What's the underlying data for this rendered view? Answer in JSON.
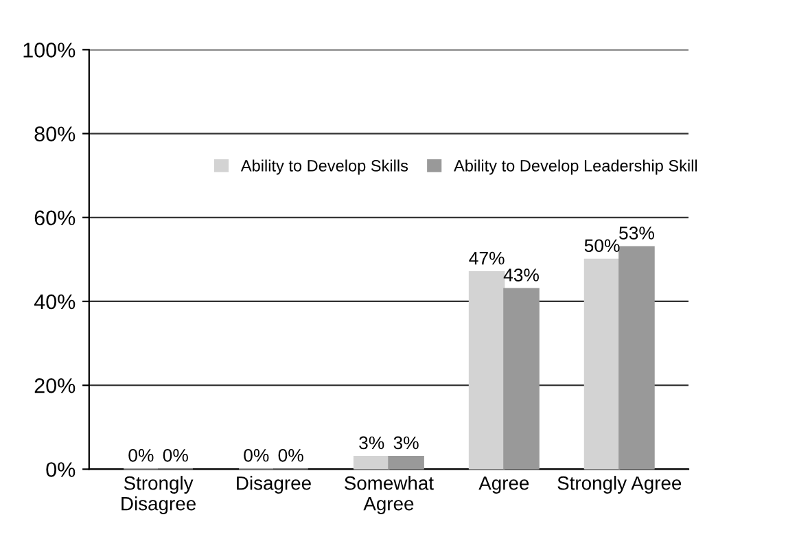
{
  "chart_data": {
    "type": "bar",
    "categories": [
      "Strongly\nDisagree",
      "Disagree",
      "Somewhat\nAgree",
      "Agree",
      "Strongly Agree"
    ],
    "series": [
      {
        "name": "Ability to Develop Skills",
        "color": "#d3d3d3",
        "values": [
          0,
          0,
          3,
          47,
          50
        ],
        "value_labels": [
          "0%",
          "0%",
          "3%",
          "47%",
          "50%"
        ]
      },
      {
        "name": "Ability to Develop Leadership Skill",
        "color": "#999999",
        "values": [
          0,
          0,
          3,
          43,
          53
        ],
        "value_labels": [
          "0%",
          "0%",
          "3%",
          "43%",
          "53%"
        ]
      }
    ],
    "ylim": [
      0,
      100
    ],
    "yticks": [
      {
        "value": 0,
        "label": "0%"
      },
      {
        "value": 20,
        "label": "20%"
      },
      {
        "value": 40,
        "label": "40%"
      },
      {
        "value": 60,
        "label": "60%"
      },
      {
        "value": 80,
        "label": "80%"
      },
      {
        "value": 100,
        "label": "100%"
      }
    ],
    "grid": "y",
    "legend": "right"
  }
}
